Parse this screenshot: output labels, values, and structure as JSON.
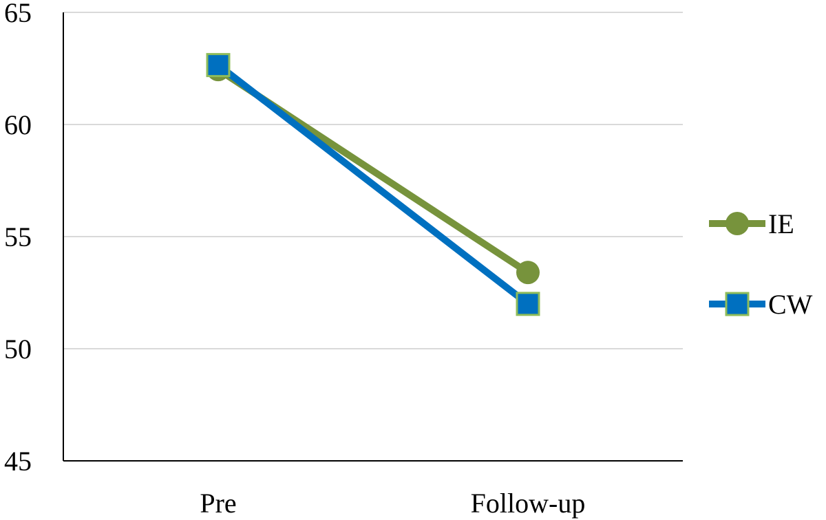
{
  "chart_data": {
    "type": "line",
    "categories": [
      "Pre",
      "Follow-up"
    ],
    "series": [
      {
        "name": "IE",
        "color": "#77933c",
        "marker": "circle",
        "values": [
          62.45,
          53.4
        ]
      },
      {
        "name": "CW",
        "color": "#0070c0",
        "marker": "square",
        "values": [
          62.65,
          52.0
        ]
      }
    ],
    "ylim": [
      45,
      65
    ],
    "yticks": [
      45,
      50,
      55,
      60,
      65
    ],
    "grid": true,
    "legend": "right"
  }
}
